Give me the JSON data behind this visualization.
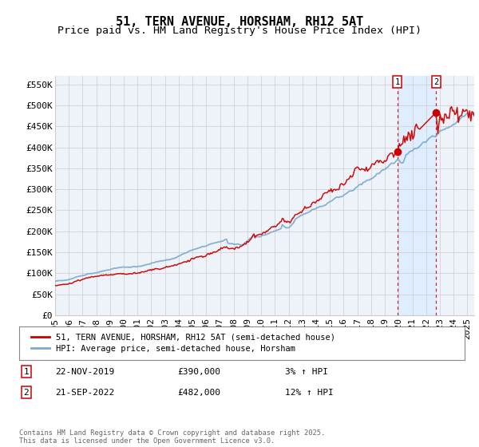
{
  "title": "51, TERN AVENUE, HORSHAM, RH12 5AT",
  "subtitle": "Price paid vs. HM Land Registry's House Price Index (HPI)",
  "ylabel_ticks": [
    "£0",
    "£50K",
    "£100K",
    "£150K",
    "£200K",
    "£250K",
    "£300K",
    "£350K",
    "£400K",
    "£450K",
    "£500K",
    "£550K"
  ],
  "ytick_vals": [
    0,
    50000,
    100000,
    150000,
    200000,
    250000,
    300000,
    350000,
    400000,
    450000,
    500000,
    550000
  ],
  "ylim": [
    0,
    570000
  ],
  "xlim_start": 1995.0,
  "xlim_end": 2025.5,
  "sale_color": "#cc0000",
  "hpi_color": "#7aabcc",
  "hpi_fill_color": "#ddeeff",
  "background_color": "#eef3fa",
  "grid_color": "#cccccc",
  "annotation_box_color": "#cc0000",
  "sale_points": [
    {
      "date_num": 2019.9,
      "price": 390000,
      "label": "1"
    },
    {
      "date_num": 2022.73,
      "price": 482000,
      "label": "2"
    }
  ],
  "legend_sale_label": "51, TERN AVENUE, HORSHAM, RH12 5AT (semi-detached house)",
  "legend_hpi_label": "HPI: Average price, semi-detached house, Horsham",
  "table_rows": [
    {
      "num": "1",
      "date": "22-NOV-2019",
      "price": "£390,000",
      "change": "3% ↑ HPI"
    },
    {
      "num": "2",
      "date": "21-SEP-2022",
      "price": "£482,000",
      "change": "12% ↑ HPI"
    }
  ],
  "footnote": "Contains HM Land Registry data © Crown copyright and database right 2025.\nThis data is licensed under the Open Government Licence v3.0.",
  "title_fontsize": 11,
  "subtitle_fontsize": 9.5,
  "tick_fontsize": 8,
  "xticks": [
    1995,
    1996,
    1997,
    1998,
    1999,
    2000,
    2001,
    2002,
    2003,
    2004,
    2005,
    2006,
    2007,
    2008,
    2009,
    2010,
    2011,
    2012,
    2013,
    2014,
    2015,
    2016,
    2017,
    2018,
    2019,
    2020,
    2021,
    2022,
    2023,
    2024,
    2025
  ]
}
